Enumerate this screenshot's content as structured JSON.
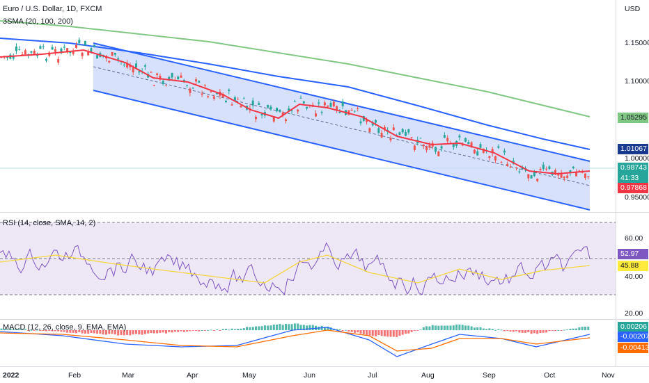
{
  "header": {
    "symbol_title": "Euro / U.S. Dollar, 1D, FXCM",
    "sma_legend": "3SMA (20, 100, 200)",
    "currency": "USD"
  },
  "price_axis": {
    "ticks": [
      "1.15000",
      "1.10000",
      "1.00000",
      "0.95000"
    ],
    "tags": {
      "sma200": {
        "value": "1.05295",
        "color": "#81c784"
      },
      "sma100": {
        "value": "1.01067",
        "color": "#1a3a8f"
      },
      "last": {
        "value": "0.98743",
        "color": "#26a69a"
      },
      "countdown": "41:33",
      "sma20": {
        "value": "0.97868",
        "color": "#f23645"
      }
    }
  },
  "rsi": {
    "legend": "RSI (14, close, SMA, 14, 2)",
    "ticks": [
      "60.00",
      "40.00",
      "20.00"
    ],
    "tags": {
      "rsi_value": {
        "value": "52.97",
        "color": "#7e57c2"
      },
      "rsi_sma": {
        "value": "45.88",
        "color": "#ffeb3b"
      }
    }
  },
  "macd": {
    "legend": "MACD (12, 26, close, 9, EMA, EMA)",
    "tags": {
      "histogram": {
        "value": "0.00206",
        "color": "#26a69a"
      },
      "macd_line": {
        "value": "-0.00207",
        "color": "#2962ff"
      },
      "signal_line": {
        "value": "-0.00413",
        "color": "#ff6d00"
      }
    }
  },
  "time_axis": [
    "2022",
    "Feb",
    "Mar",
    "Apr",
    "May",
    "Jun",
    "Jul",
    "Aug",
    "Sep",
    "Oct",
    "Nov"
  ],
  "colors": {
    "up": "#26a69a",
    "down": "#ef5350",
    "sma20": "#f23645",
    "sma100": "#2962ff",
    "sma200": "#81c784",
    "channel": "#2962ff",
    "channel_fill": "#c9d7fb",
    "rsi_line": "#7e57c2",
    "rsi_sma": "#f5d63d",
    "rsi_band": "#ede7f6"
  }
}
